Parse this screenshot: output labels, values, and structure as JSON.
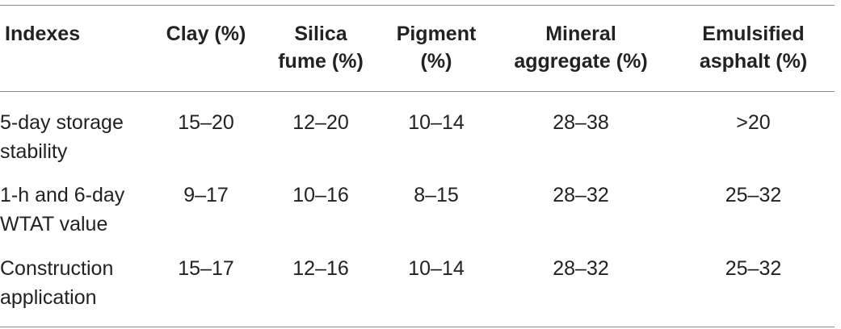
{
  "table": {
    "headers": [
      "Indexes",
      "Clay (%)",
      "Silica fume (%)",
      "Pigment (%)",
      "Mineral aggregate (%)",
      "Emulsified asphalt (%)"
    ],
    "header_lines": [
      [
        "Indexes",
        ""
      ],
      [
        "Clay (%)",
        ""
      ],
      [
        "Silica",
        "fume (%)"
      ],
      [
        "Pigment",
        "(%)"
      ],
      [
        "Mineral",
        "aggregate (%)"
      ],
      [
        "Emulsified",
        "asphalt (%)"
      ]
    ],
    "rows": [
      {
        "index_lines": [
          "5-day storage",
          "stability"
        ],
        "values": [
          "15–20",
          "12–20",
          "10–14",
          "28–38",
          ">20"
        ]
      },
      {
        "index_lines": [
          "1-h and 6-day",
          "WTAT value"
        ],
        "values": [
          "9–17",
          "10–16",
          "8–15",
          "28–32",
          "25–32"
        ]
      },
      {
        "index_lines": [
          "Construction",
          "application"
        ],
        "values": [
          "15–17",
          "12–16",
          "10–14",
          "28–32",
          "25–32"
        ]
      }
    ]
  }
}
